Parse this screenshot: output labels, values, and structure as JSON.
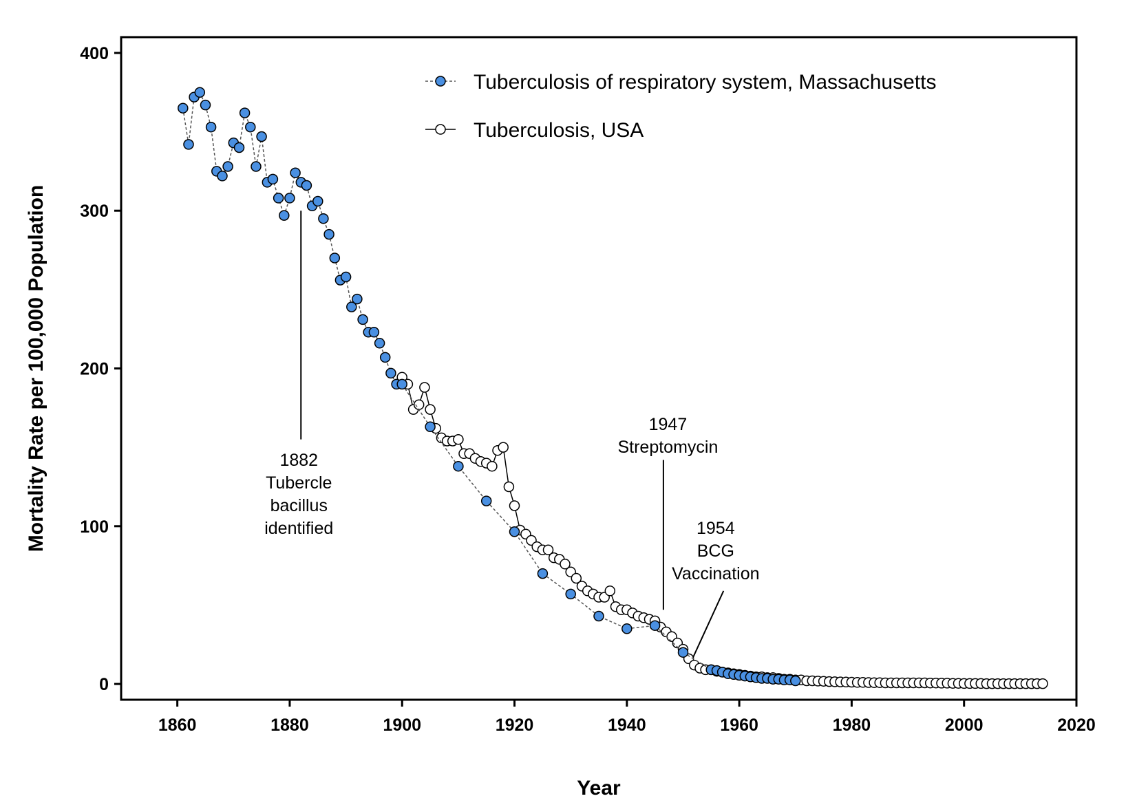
{
  "chart_data": {
    "type": "line",
    "xlabel": "Year",
    "ylabel": "Mortality Rate per 100,000 Population",
    "xlim": [
      1850,
      2020
    ],
    "ylim": [
      -10,
      410
    ],
    "xticks": [
      1860,
      1880,
      1900,
      1920,
      1940,
      1960,
      1980,
      2000,
      2020
    ],
    "yticks": [
      0,
      100,
      200,
      300,
      400
    ],
    "grid": false,
    "legend_position": "top-right",
    "colors": {
      "massachusetts": "#4a90e2",
      "usa": "#ffffff",
      "outline": "#000000",
      "ma_line": "#555555"
    },
    "series": [
      {
        "name": "Tuberculosis, USA",
        "style": "solid-open-circle",
        "x": [
          1900,
          1901,
          1902,
          1903,
          1904,
          1905,
          1906,
          1907,
          1908,
          1909,
          1910,
          1911,
          1912,
          1913,
          1914,
          1915,
          1916,
          1917,
          1918,
          1919,
          1920,
          1921,
          1922,
          1923,
          1924,
          1925,
          1926,
          1927,
          1928,
          1929,
          1930,
          1931,
          1932,
          1933,
          1934,
          1935,
          1936,
          1937,
          1938,
          1939,
          1940,
          1941,
          1942,
          1943,
          1944,
          1945,
          1946,
          1947,
          1948,
          1949,
          1950,
          1951,
          1952,
          1953,
          1954,
          1955,
          1956,
          1957,
          1958,
          1959,
          1960,
          1961,
          1962,
          1963,
          1964,
          1965,
          1966,
          1967,
          1968,
          1969,
          1970,
          1971,
          1972,
          1973,
          1974,
          1975,
          1976,
          1977,
          1978,
          1979,
          1980,
          1981,
          1982,
          1983,
          1984,
          1985,
          1986,
          1987,
          1988,
          1989,
          1990,
          1991,
          1992,
          1993,
          1994,
          1995,
          1996,
          1997,
          1998,
          1999,
          2000,
          2001,
          2002,
          2003,
          2004,
          2005,
          2006,
          2007,
          2008,
          2009,
          2010,
          2011,
          2012,
          2013,
          2014
        ],
        "y": [
          194.4,
          190,
          174,
          177,
          188,
          174,
          162,
          156,
          154,
          154,
          155,
          146,
          146,
          143,
          141,
          140,
          138,
          148,
          150,
          125,
          113,
          97.5,
          95,
          91,
          87,
          85,
          85,
          80,
          79,
          76,
          71,
          67,
          62,
          59,
          57,
          55,
          55,
          59,
          49,
          47,
          47,
          45,
          43,
          42,
          41,
          40,
          36,
          33,
          30,
          26,
          22,
          16,
          12,
          10,
          9,
          9,
          8,
          7.5,
          7,
          6.5,
          6,
          5.5,
          5,
          4.5,
          4.5,
          4,
          4,
          3.5,
          3,
          3,
          2.5,
          2.5,
          2,
          2,
          1.8,
          1.7,
          1.5,
          1.4,
          1.3,
          1.2,
          1.1,
          1,
          1,
          0.9,
          0.8,
          0.8,
          0.7,
          0.7,
          0.7,
          0.7,
          0.7,
          0.7,
          0.7,
          0.7,
          0.6,
          0.6,
          0.5,
          0.5,
          0.4,
          0.4,
          0.3,
          0.3,
          0.3,
          0.3,
          0.2,
          0.2,
          0.2,
          0.2,
          0.2,
          0.2,
          0.2,
          0.2,
          0.2,
          0.2,
          0.2
        ]
      },
      {
        "name": "Tuberculosis of respiratory system, Massachusetts",
        "style": "dashed-filled-circle",
        "x": [
          1861,
          1862,
          1863,
          1864,
          1865,
          1866,
          1867,
          1868,
          1869,
          1870,
          1871,
          1872,
          1873,
          1874,
          1875,
          1876,
          1877,
          1878,
          1879,
          1880,
          1881,
          1882,
          1883,
          1884,
          1885,
          1886,
          1887,
          1888,
          1889,
          1890,
          1891,
          1892,
          1893,
          1894,
          1895,
          1896,
          1897,
          1898,
          1899,
          1900,
          1905,
          1910,
          1915,
          1920,
          1925,
          1930,
          1935,
          1940,
          1945,
          1950,
          1955,
          1956,
          1957,
          1958,
          1959,
          1960,
          1961,
          1962,
          1963,
          1964,
          1965,
          1966,
          1967,
          1968,
          1969,
          1970
        ],
        "y": [
          365,
          342,
          372,
          375,
          367,
          353,
          325,
          322,
          328,
          343,
          340,
          362,
          353,
          328,
          347,
          318,
          320,
          308,
          297,
          308,
          324,
          318,
          316,
          303,
          306,
          295,
          285,
          270,
          256,
          258,
          239,
          244,
          231,
          223,
          223,
          216,
          207,
          197,
          190,
          190,
          163,
          138,
          116,
          96.5,
          70,
          57,
          43,
          35,
          37,
          20,
          9,
          8.5,
          7.5,
          6.5,
          6,
          5.5,
          5,
          4.5,
          4,
          3.5,
          3.5,
          3,
          3,
          2.5,
          2.5,
          2
        ]
      }
    ],
    "annotations": [
      {
        "x": 1882,
        "lines": [
          "1882",
          "Tubercle",
          "bacillus",
          "identified"
        ]
      },
      {
        "x": 1947,
        "lines": [
          "1947",
          "Streptomycin"
        ]
      },
      {
        "x": 1954,
        "lines": [
          "1954",
          "BCG",
          "Vaccination"
        ]
      }
    ]
  }
}
